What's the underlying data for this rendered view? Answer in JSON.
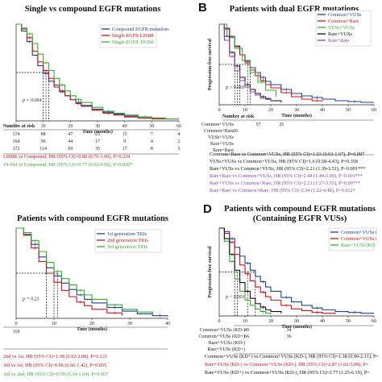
{
  "colors": {
    "blue": "#1f3f8f",
    "red": "#c4161c",
    "green": "#3aa935",
    "purple": "#8e44ad",
    "black": "#111111",
    "grey": "#888888"
  },
  "charts": [
    {
      "id": "A",
      "title": "Single vs compound EGFR mutations",
      "panel_letter": "",
      "xlabel": "Time (months)",
      "ylabel": "",
      "x_ticks": [
        "0",
        "10",
        "20",
        "30",
        "40",
        "50",
        "60"
      ],
      "xlim": [
        0,
        60
      ],
      "pvalue": "p = 0.064",
      "legend": [
        {
          "label": "Compound EGFR mutations",
          "color": "blue"
        },
        {
          "label": "Single EGFR L858R",
          "color": "red"
        },
        {
          "label": "Single EGFR 19-Del",
          "color": "green"
        }
      ],
      "risk_header": "Number at risk",
      "risk_labels": [
        "",
        "",
        ""
      ],
      "risk_rows": [
        [
          "174",
          "88",
          "47",
          "23",
          "15",
          "7",
          "4"
        ],
        [
          "164",
          "96",
          "44",
          "17",
          "9",
          "4",
          "2"
        ],
        [
          "172",
          "114",
          "69",
          "35",
          "17",
          "8",
          "5"
        ]
      ],
      "stats": [
        {
          "text": "L858R vs Compound, HR (95% CI)=0.88 (0.70-1.09), P=0.234",
          "color": "red"
        },
        {
          "text": "19-Del vs Compound, HR (95% CI)=0.77 (0.62-0.96), P=0.020*",
          "color": "green"
        }
      ],
      "chart_data": {
        "type": "line",
        "xlim": [
          0,
          60
        ],
        "ylim": [
          0,
          1
        ],
        "series": [
          {
            "name": "Compound EGFR mutations",
            "color": "blue",
            "x": [
              0,
              2,
              4,
              6,
              8,
              10,
              12,
              14,
              16,
              18,
              20,
              22,
              24,
              28,
              32,
              36,
              40,
              45,
              50,
              55,
              60
            ],
            "y": [
              1,
              0.93,
              0.82,
              0.68,
              0.57,
              0.49,
              0.41,
              0.35,
              0.3,
              0.26,
              0.22,
              0.19,
              0.16,
              0.12,
              0.09,
              0.07,
              0.05,
              0.04,
              0.03,
              0.02,
              0.02
            ]
          },
          {
            "name": "Single EGFR L858R",
            "color": "red",
            "x": [
              0,
              2,
              4,
              6,
              8,
              10,
              12,
              14,
              16,
              18,
              20,
              22,
              24,
              28,
              32,
              36,
              40,
              45,
              50,
              55
            ],
            "y": [
              1,
              0.95,
              0.86,
              0.72,
              0.61,
              0.52,
              0.44,
              0.37,
              0.31,
              0.26,
              0.22,
              0.18,
              0.15,
              0.11,
              0.08,
              0.06,
              0.04,
              0.03,
              0.02,
              0.02
            ]
          },
          {
            "name": "Single EGFR 19-Del",
            "color": "green",
            "x": [
              0,
              2,
              4,
              6,
              8,
              10,
              12,
              14,
              16,
              18,
              20,
              22,
              24,
              28,
              32,
              36,
              40,
              45,
              50,
              55,
              60
            ],
            "y": [
              1,
              0.96,
              0.9,
              0.8,
              0.69,
              0.6,
              0.52,
              0.44,
              0.37,
              0.31,
              0.26,
              0.22,
              0.19,
              0.14,
              0.1,
              0.08,
              0.06,
              0.04,
              0.03,
              0.02,
              0.02
            ]
          }
        ],
        "median_x": [
          10,
          11,
          12
        ]
      }
    },
    {
      "id": "B",
      "title": "Patients with dual EGFR mutations",
      "panel_letter": "B",
      "xlabel": "Time (months)",
      "ylabel": "Progression-free survival",
      "x_ticks": [
        "0",
        "10",
        "20",
        "30",
        "40",
        "50",
        "60"
      ],
      "xlim": [
        0,
        60
      ],
      "pvalue": "p < 0.001",
      "legend": [
        {
          "label": "Common+VUSs",
          "color": "blue"
        },
        {
          "label": "Common+Rare",
          "color": "red"
        },
        {
          "label": "VUSs+VUSs",
          "color": "green"
        },
        {
          "label": "Rare+VUSs",
          "color": "black"
        },
        {
          "label": "Rare+Rare",
          "color": "purple"
        }
      ],
      "risk_header": "Number at risk",
      "risk_labels": [
        "Common+VUSs",
        "Common+Rare",
        "VUSs+VUSs",
        "Rare+VUSs",
        "Rare+Rare"
      ],
      "risk_rows": [
        [
          "",
          "57",
          "25",
          "",
          "",
          "",
          ""
        ],
        [
          "20",
          "",
          "",
          "",
          "",
          "",
          ""
        ],
        [
          "",
          "",
          "",
          "",
          "",
          "",
          ""
        ],
        [
          "",
          "",
          "",
          "",
          "",
          "",
          ""
        ],
        [
          "",
          "",
          "",
          "",
          "",
          "",
          ""
        ]
      ],
      "stats": [
        {
          "text": "Common+Rare vs Common+VUSs, HR (95% CI)=1.03 (0.63-1.67), P=0.897",
          "color": "black"
        },
        {
          "text": "VUSs+VUSs vs Common+VUSs, HR (95% CI)=1.6 (0.58-4.43), P=0.358",
          "color": "black"
        },
        {
          "text": "Rare+VUSs vs Common+VUSs, HR (95% CI)=2.21 (1.39-3.51), P<0.001***",
          "color": "black"
        },
        {
          "text": "Rare+Rare vs Common+VUSs, HR (95% CI)=2.44 (1.49-3.99), P<0.001***",
          "color": "purple"
        },
        {
          "text": "Rare+VUSs vs Common+Rare, HR (95% CI)=2.13 (1.27-3.55), P=0.007**",
          "color": "purple"
        },
        {
          "text": "Rare+Rare vs Common+Rare, HR (95% CI)=2.34 (1.22-4.48), P=0.012*",
          "color": "purple"
        }
      ],
      "chart_data": {
        "type": "line",
        "xlim": [
          0,
          60
        ],
        "ylim": [
          0,
          1
        ],
        "series": [
          {
            "name": "Common+VUSs",
            "color": "blue",
            "x": [
              0,
              2,
              4,
              6,
              8,
              10,
              12,
              14,
              16,
              18,
              20,
              24,
              28,
              32,
              36,
              40,
              45,
              50,
              55,
              60
            ],
            "y": [
              1,
              0.94,
              0.84,
              0.72,
              0.62,
              0.54,
              0.46,
              0.4,
              0.34,
              0.29,
              0.25,
              0.19,
              0.14,
              0.11,
              0.09,
              0.07,
              0.05,
              0.04,
              0.03,
              0.03
            ]
          },
          {
            "name": "Common+Rare",
            "color": "red",
            "x": [
              0,
              2,
              4,
              6,
              8,
              10,
              12,
              14,
              16,
              18,
              20,
              24,
              28,
              32,
              36,
              40
            ],
            "y": [
              1,
              0.95,
              0.85,
              0.73,
              0.62,
              0.52,
              0.43,
              0.36,
              0.3,
              0.25,
              0.21,
              0.15,
              0.1,
              0.07,
              0.05,
              0.04
            ]
          },
          {
            "name": "VUSs+VUSs",
            "color": "green",
            "x": [
              0,
              3,
              6,
              9,
              12,
              15,
              18,
              22
            ],
            "y": [
              1,
              0.85,
              0.7,
              0.55,
              0.4,
              0.28,
              0.18,
              0.1
            ]
          },
          {
            "name": "Rare+VUSs",
            "color": "black",
            "x": [
              0,
              2,
              4,
              6,
              8,
              10,
              12,
              14,
              16,
              18,
              20,
              24
            ],
            "y": [
              1,
              0.85,
              0.65,
              0.48,
              0.34,
              0.25,
              0.19,
              0.14,
              0.1,
              0.07,
              0.05,
              0.03
            ]
          },
          {
            "name": "Rare+Rare",
            "color": "purple",
            "x": [
              0,
              2,
              4,
              6,
              8,
              10,
              12,
              14,
              16,
              20
            ],
            "y": [
              1,
              0.8,
              0.6,
              0.42,
              0.3,
              0.22,
              0.16,
              0.12,
              0.08,
              0.05
            ]
          }
        ],
        "median_x": [
          6,
          7,
          8,
          11,
          12
        ]
      }
    },
    {
      "id": "C",
      "title": "Patients with compound EGFR mutations",
      "panel_letter": "",
      "xlabel": "Time (months)",
      "ylabel": "",
      "x_ticks": [
        "0",
        "10",
        "20",
        "30",
        "40"
      ],
      "xlim": [
        0,
        40
      ],
      "pvalue": "p = 0.23",
      "legend": [
        {
          "label": "1st generation TKIs",
          "color": "blue"
        },
        {
          "label": "2nd generation TKIs",
          "color": "red"
        },
        {
          "label": "3rd generation TKIs",
          "color": "green"
        }
      ],
      "risk_header": "",
      "risk_labels": [
        "",
        "",
        ""
      ],
      "risk_rows": [
        [
          "118",
          "",
          "",
          "",
          "",
          ""
        ],
        [
          "",
          "",
          "",
          "",
          "",
          ""
        ],
        [
          "",
          "",
          "",
          "",
          "",
          ""
        ]
      ],
      "stats": [
        {
          "text": "2nd vs 1st, HR (95% CI)=1.38 (0.92-2.08), P=0.121",
          "color": "red"
        },
        {
          "text": "3rd vs 1st, HR (95% CI)=0.96 (0.66-1.42), P=0.855",
          "color": "red"
        },
        {
          "text": "3rd vs 2nd, HR (95% CI)=0.59 (0.34-1.04), P=0.067",
          "color": "green"
        }
      ],
      "chart_data": {
        "type": "line",
        "xlim": [
          0,
          40
        ],
        "ylim": [
          0,
          1
        ],
        "series": [
          {
            "name": "1st generation TKIs",
            "color": "blue",
            "x": [
              0,
              2,
              4,
              6,
              8,
              10,
              12,
              14,
              16,
              18,
              20,
              24,
              28,
              32,
              36,
              40
            ],
            "y": [
              1,
              0.93,
              0.82,
              0.68,
              0.56,
              0.47,
              0.39,
              0.32,
              0.26,
              0.21,
              0.17,
              0.12,
              0.08,
              0.05,
              0.03,
              0.02
            ]
          },
          {
            "name": "2nd generation TKIs",
            "color": "red",
            "x": [
              0,
              2,
              4,
              6,
              8,
              10,
              12,
              14,
              16,
              18,
              20,
              24,
              28
            ],
            "y": [
              1,
              0.92,
              0.78,
              0.63,
              0.5,
              0.4,
              0.31,
              0.24,
              0.18,
              0.14,
              0.1,
              0.06,
              0.03
            ]
          },
          {
            "name": "3rd generation TKIs",
            "color": "green",
            "x": [
              0,
              2,
              4,
              6,
              8,
              10,
              12,
              14,
              16,
              18,
              20,
              24,
              28,
              32,
              36
            ],
            "y": [
              1,
              0.95,
              0.86,
              0.74,
              0.62,
              0.52,
              0.44,
              0.37,
              0.31,
              0.26,
              0.21,
              0.15,
              0.1,
              0.07,
              0.05
            ]
          }
        ],
        "median_x": [
          8,
          10,
          11
        ]
      }
    },
    {
      "id": "D",
      "title": "Patients with compound EGFR mutations",
      "subtitle": "(Containing EGFR VUSs)",
      "panel_letter": "D",
      "xlabel": "Time (months)",
      "ylabel": "Progression-free survival",
      "x_ticks": [
        "0",
        "10",
        "20",
        "30",
        "40",
        "50",
        "60"
      ],
      "xlim": [
        0,
        60
      ],
      "pvalue": "p < 0.001",
      "legend": [
        {
          "label": "Common+VUSs (",
          "color": "blue"
        },
        {
          "label": "Common+VUSs (",
          "color": "red"
        },
        {
          "label": "Rare+VUSs (KD",
          "color": "green"
        }
      ],
      "risk_header": "",
      "risk_labels": [
        "Common+VUSs (KD-)",
        "Common+VUSs (KD+)",
        "Rare+VUSs (KD-)",
        "Rare+VUSs (KD+)"
      ],
      "risk_rows": [
        [
          "49",
          "",
          "34",
          "",
          "",
          "",
          ""
        ],
        [
          "66",
          "",
          "36",
          "",
          "",
          "",
          ""
        ],
        [
          "",
          "",
          "",
          "",
          "",
          "",
          ""
        ],
        [
          "",
          "",
          "",
          "",
          "",
          "",
          ""
        ]
      ],
      "stats": [
        {
          "text": "Common+VUSs (KD+) vs Common+VUSs (KD-), HR (95% CI)=1.38 (0.90-2.11), P=",
          "color": "black"
        },
        {
          "text": "Rare+VUSs (KD-) vs Common+VUSs (KD-), HR (95% CI)=2.87 (1.62-5.09), P=",
          "color": "red"
        },
        {
          "text": "Rare+VUSs (KD+) vs Common+VUSs (KD-), HR (95% CI)=2.77 (1.25-6.19), P=",
          "color": "black"
        }
      ],
      "chart_data": {
        "type": "line",
        "xlim": [
          0,
          60
        ],
        "ylim": [
          0,
          1
        ],
        "series": [
          {
            "name": "Common+VUSs (KD-)",
            "color": "blue",
            "x": [
              0,
              2,
              4,
              6,
              8,
              10,
              12,
              14,
              16,
              18,
              20,
              24,
              28,
              32,
              36,
              40,
              45,
              50,
              55,
              60
            ],
            "y": [
              1,
              0.96,
              0.88,
              0.78,
              0.68,
              0.6,
              0.52,
              0.45,
              0.39,
              0.33,
              0.28,
              0.21,
              0.16,
              0.12,
              0.09,
              0.07,
              0.05,
              0.04,
              0.03,
              0.03
            ]
          },
          {
            "name": "Common+VUSs (KD+)",
            "color": "red",
            "x": [
              0,
              2,
              4,
              6,
              8,
              10,
              12,
              14,
              16,
              18,
              20,
              24,
              28,
              32,
              36,
              40,
              45
            ],
            "y": [
              1,
              0.94,
              0.84,
              0.7,
              0.58,
              0.48,
              0.4,
              0.33,
              0.27,
              0.22,
              0.18,
              0.12,
              0.08,
              0.06,
              0.04,
              0.03,
              0.02
            ]
          },
          {
            "name": "Rare+VUSs (KD-)",
            "color": "green",
            "x": [
              0,
              2,
              4,
              6,
              8,
              10,
              12,
              14,
              16,
              18,
              20
            ],
            "y": [
              1,
              0.85,
              0.62,
              0.42,
              0.28,
              0.18,
              0.12,
              0.08,
              0.05,
              0.03,
              0.02
            ]
          },
          {
            "name": "Rare+VUSs (KD+)",
            "color": "black",
            "x": [
              0,
              2,
              4,
              6,
              8,
              10,
              12,
              14,
              16,
              18,
              20,
              24
            ],
            "y": [
              1,
              0.88,
              0.7,
              0.52,
              0.38,
              0.28,
              0.2,
              0.14,
              0.1,
              0.07,
              0.05,
              0.03
            ]
          }
        ],
        "median_x": [
          6,
          7,
          11,
          14
        ]
      }
    }
  ]
}
